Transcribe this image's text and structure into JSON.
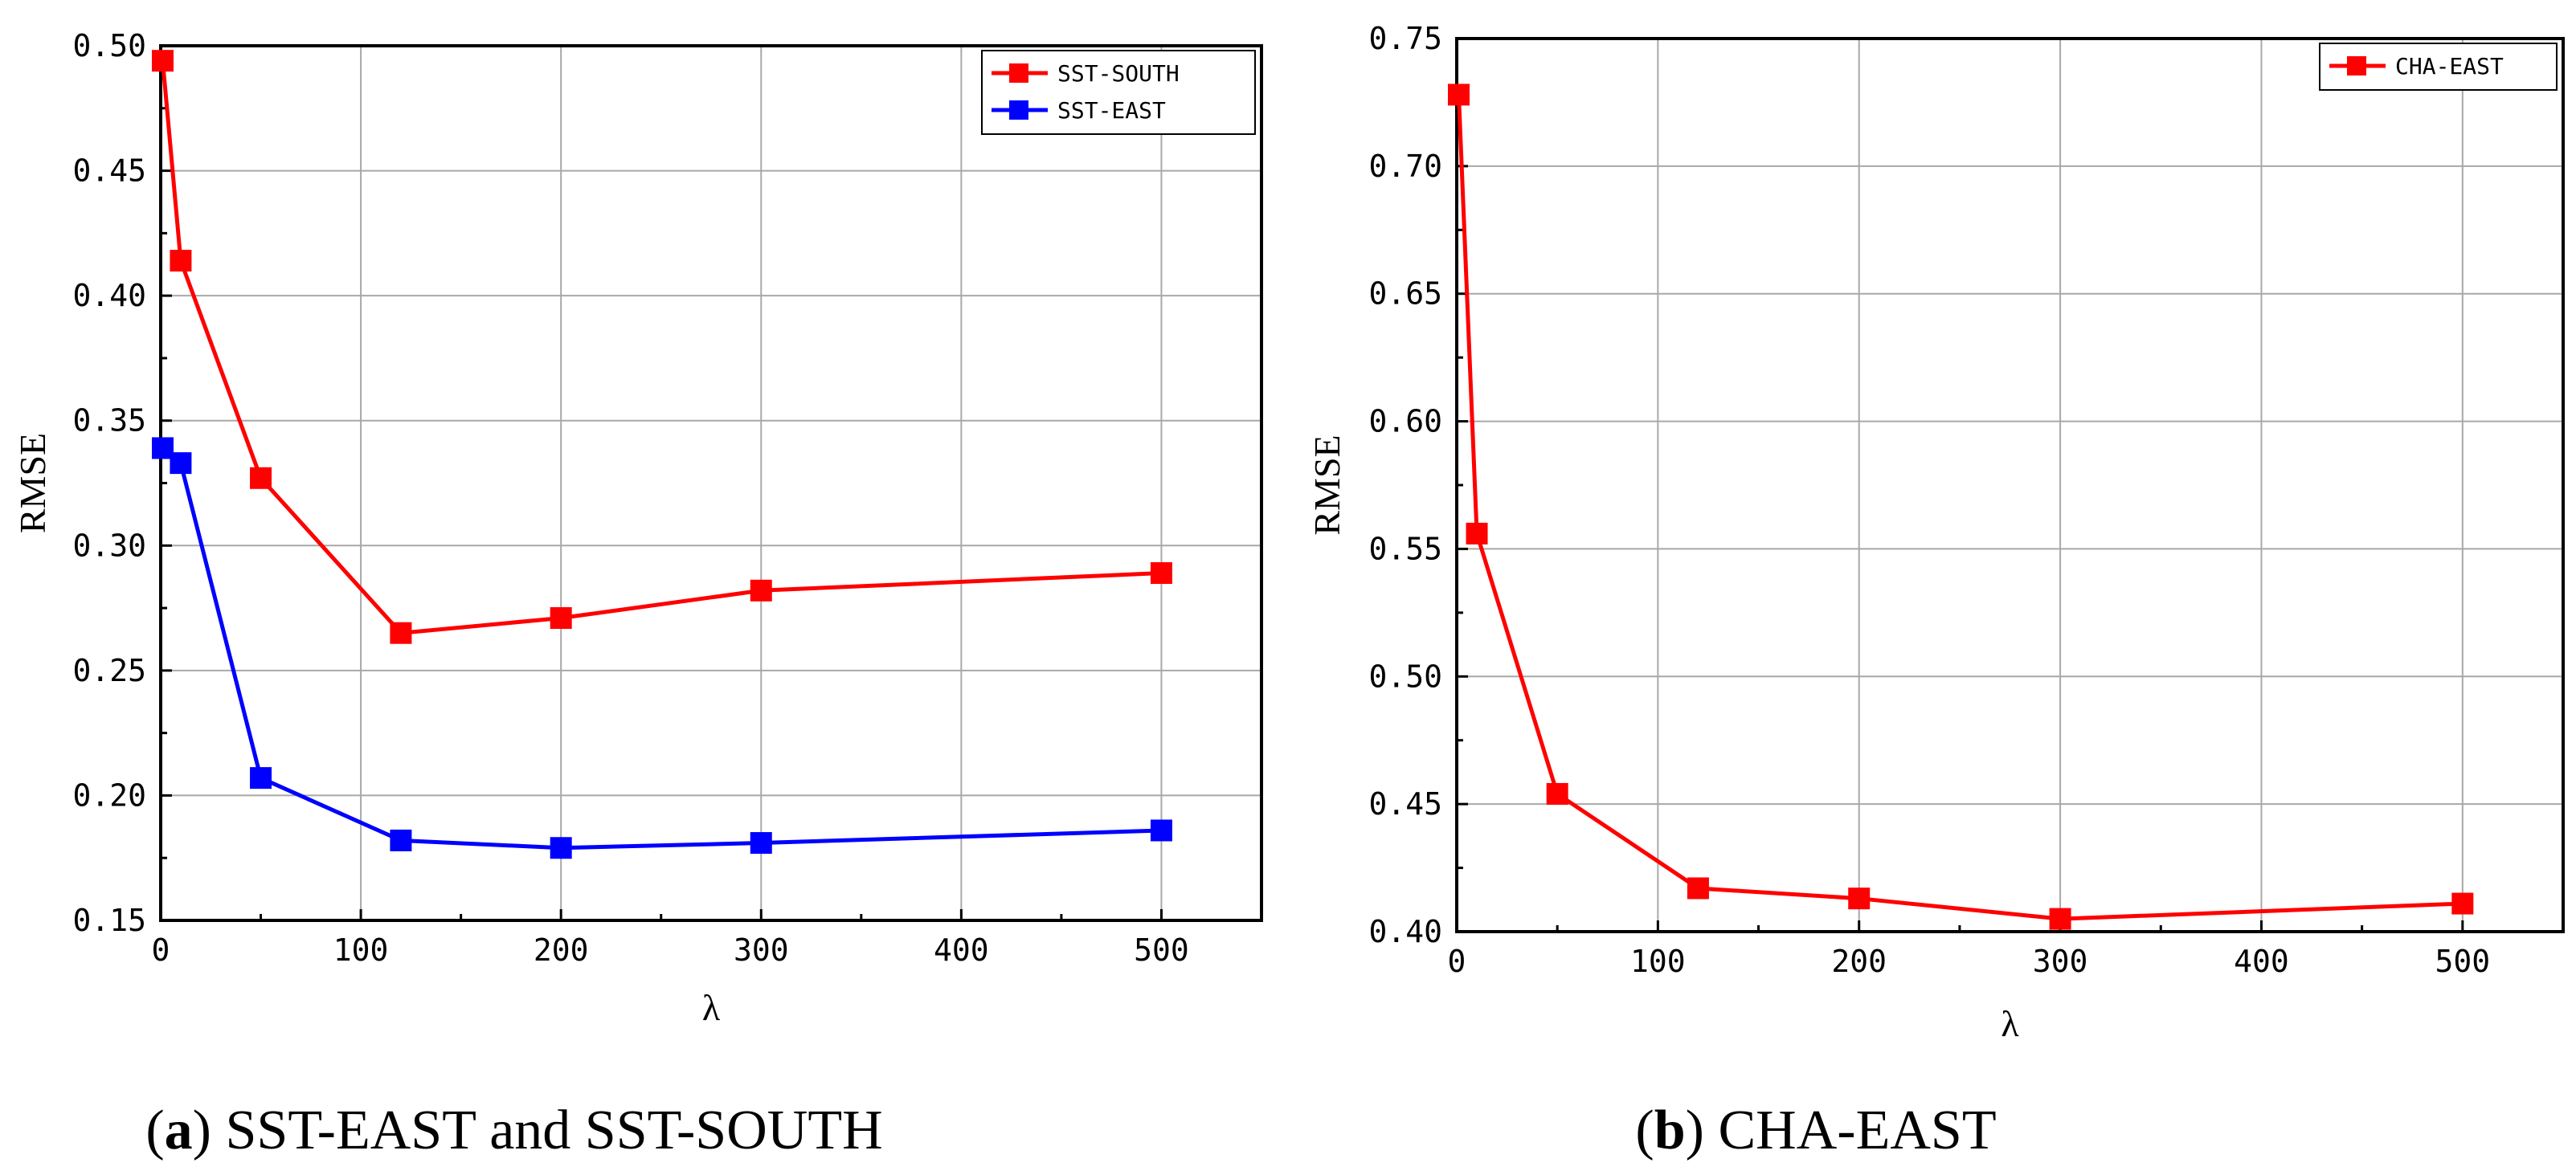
{
  "chart_data": [
    {
      "type": "line",
      "caption_letter": "a",
      "caption_text": "SST-EAST and SST-SOUTH",
      "xlabel": "λ",
      "ylabel": "RMSE",
      "xlim": [
        0,
        550
      ],
      "ylim": [
        0.15,
        0.5
      ],
      "xticks": [
        0,
        100,
        200,
        300,
        400,
        500
      ],
      "xtick_labels": [
        "0",
        "100",
        "200",
        "300",
        "400",
        "500"
      ],
      "yticks": [
        0.15,
        0.2,
        0.25,
        0.3,
        0.35,
        0.4,
        0.45,
        0.5
      ],
      "ytick_labels": [
        "0.15",
        "0.20",
        "0.25",
        "0.30",
        "0.35",
        "0.40",
        "0.45",
        "0.50"
      ],
      "grid": true,
      "legend_position": "top-right",
      "series": [
        {
          "name": "SST-SOUTH",
          "color": "#ff0000",
          "x": [
            1,
            10,
            50,
            120,
            200,
            300,
            500
          ],
          "y": [
            0.494,
            0.414,
            0.327,
            0.265,
            0.271,
            0.282,
            0.289
          ]
        },
        {
          "name": "SST-EAST",
          "color": "#0000ff",
          "x": [
            1,
            10,
            50,
            120,
            200,
            300,
            500
          ],
          "y": [
            0.339,
            0.333,
            0.207,
            0.182,
            0.179,
            0.181,
            0.186
          ]
        }
      ]
    },
    {
      "type": "line",
      "caption_letter": "b",
      "caption_text": "CHA-EAST",
      "xlabel": "λ",
      "ylabel": "RMSE",
      "xlim": [
        0,
        550
      ],
      "ylim": [
        0.4,
        0.75
      ],
      "xticks": [
        0,
        100,
        200,
        300,
        400,
        500
      ],
      "xtick_labels": [
        "0",
        "100",
        "200",
        "300",
        "400",
        "500"
      ],
      "yticks": [
        0.4,
        0.45,
        0.5,
        0.55,
        0.6,
        0.65,
        0.7,
        0.75
      ],
      "ytick_labels": [
        "0.40",
        "0.45",
        "0.50",
        "0.55",
        "0.60",
        "0.65",
        "0.70",
        "0.75"
      ],
      "grid": true,
      "legend_position": "top-right",
      "series": [
        {
          "name": "CHA-EAST",
          "color": "#ff0000",
          "x": [
            1,
            10,
            50,
            120,
            200,
            300,
            500
          ],
          "y": [
            0.728,
            0.556,
            0.454,
            0.417,
            0.413,
            0.405,
            0.411
          ]
        }
      ]
    }
  ]
}
